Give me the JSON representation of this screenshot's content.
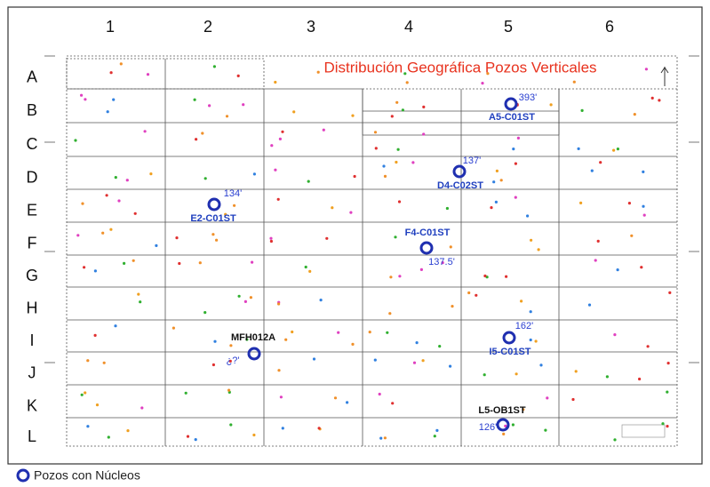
{
  "title": "Distribución Geográfica Pozos Verticales",
  "columns": [
    "1",
    "2",
    "3",
    "4",
    "5",
    "6"
  ],
  "rows": [
    "A",
    "B",
    "C",
    "D",
    "E",
    "F",
    "G",
    "H",
    "I",
    "J",
    "K",
    "L"
  ],
  "wells": [
    {
      "name": "A5-C01ST",
      "depth": "393'",
      "name_color": "#1f3fbf"
    },
    {
      "name": "D4-C02ST",
      "depth": "137'",
      "name_color": "#1f3fbf"
    },
    {
      "name": "E2-C01ST",
      "depth": "134'",
      "name_color": "#1f3fbf"
    },
    {
      "name": "F4-C01ST",
      "depth": "137.5'",
      "name_color": "#1f3fbf"
    },
    {
      "name": "MFH012A",
      "depth": "¿?'",
      "name_color": "#111111"
    },
    {
      "name": "I5-C01ST",
      "depth": "162'",
      "name_color": "#1f3fbf"
    },
    {
      "name": "L5-OB1ST",
      "depth": "126'",
      "name_color": "#111111"
    }
  ],
  "legend": "Pozos con Núcleos"
}
